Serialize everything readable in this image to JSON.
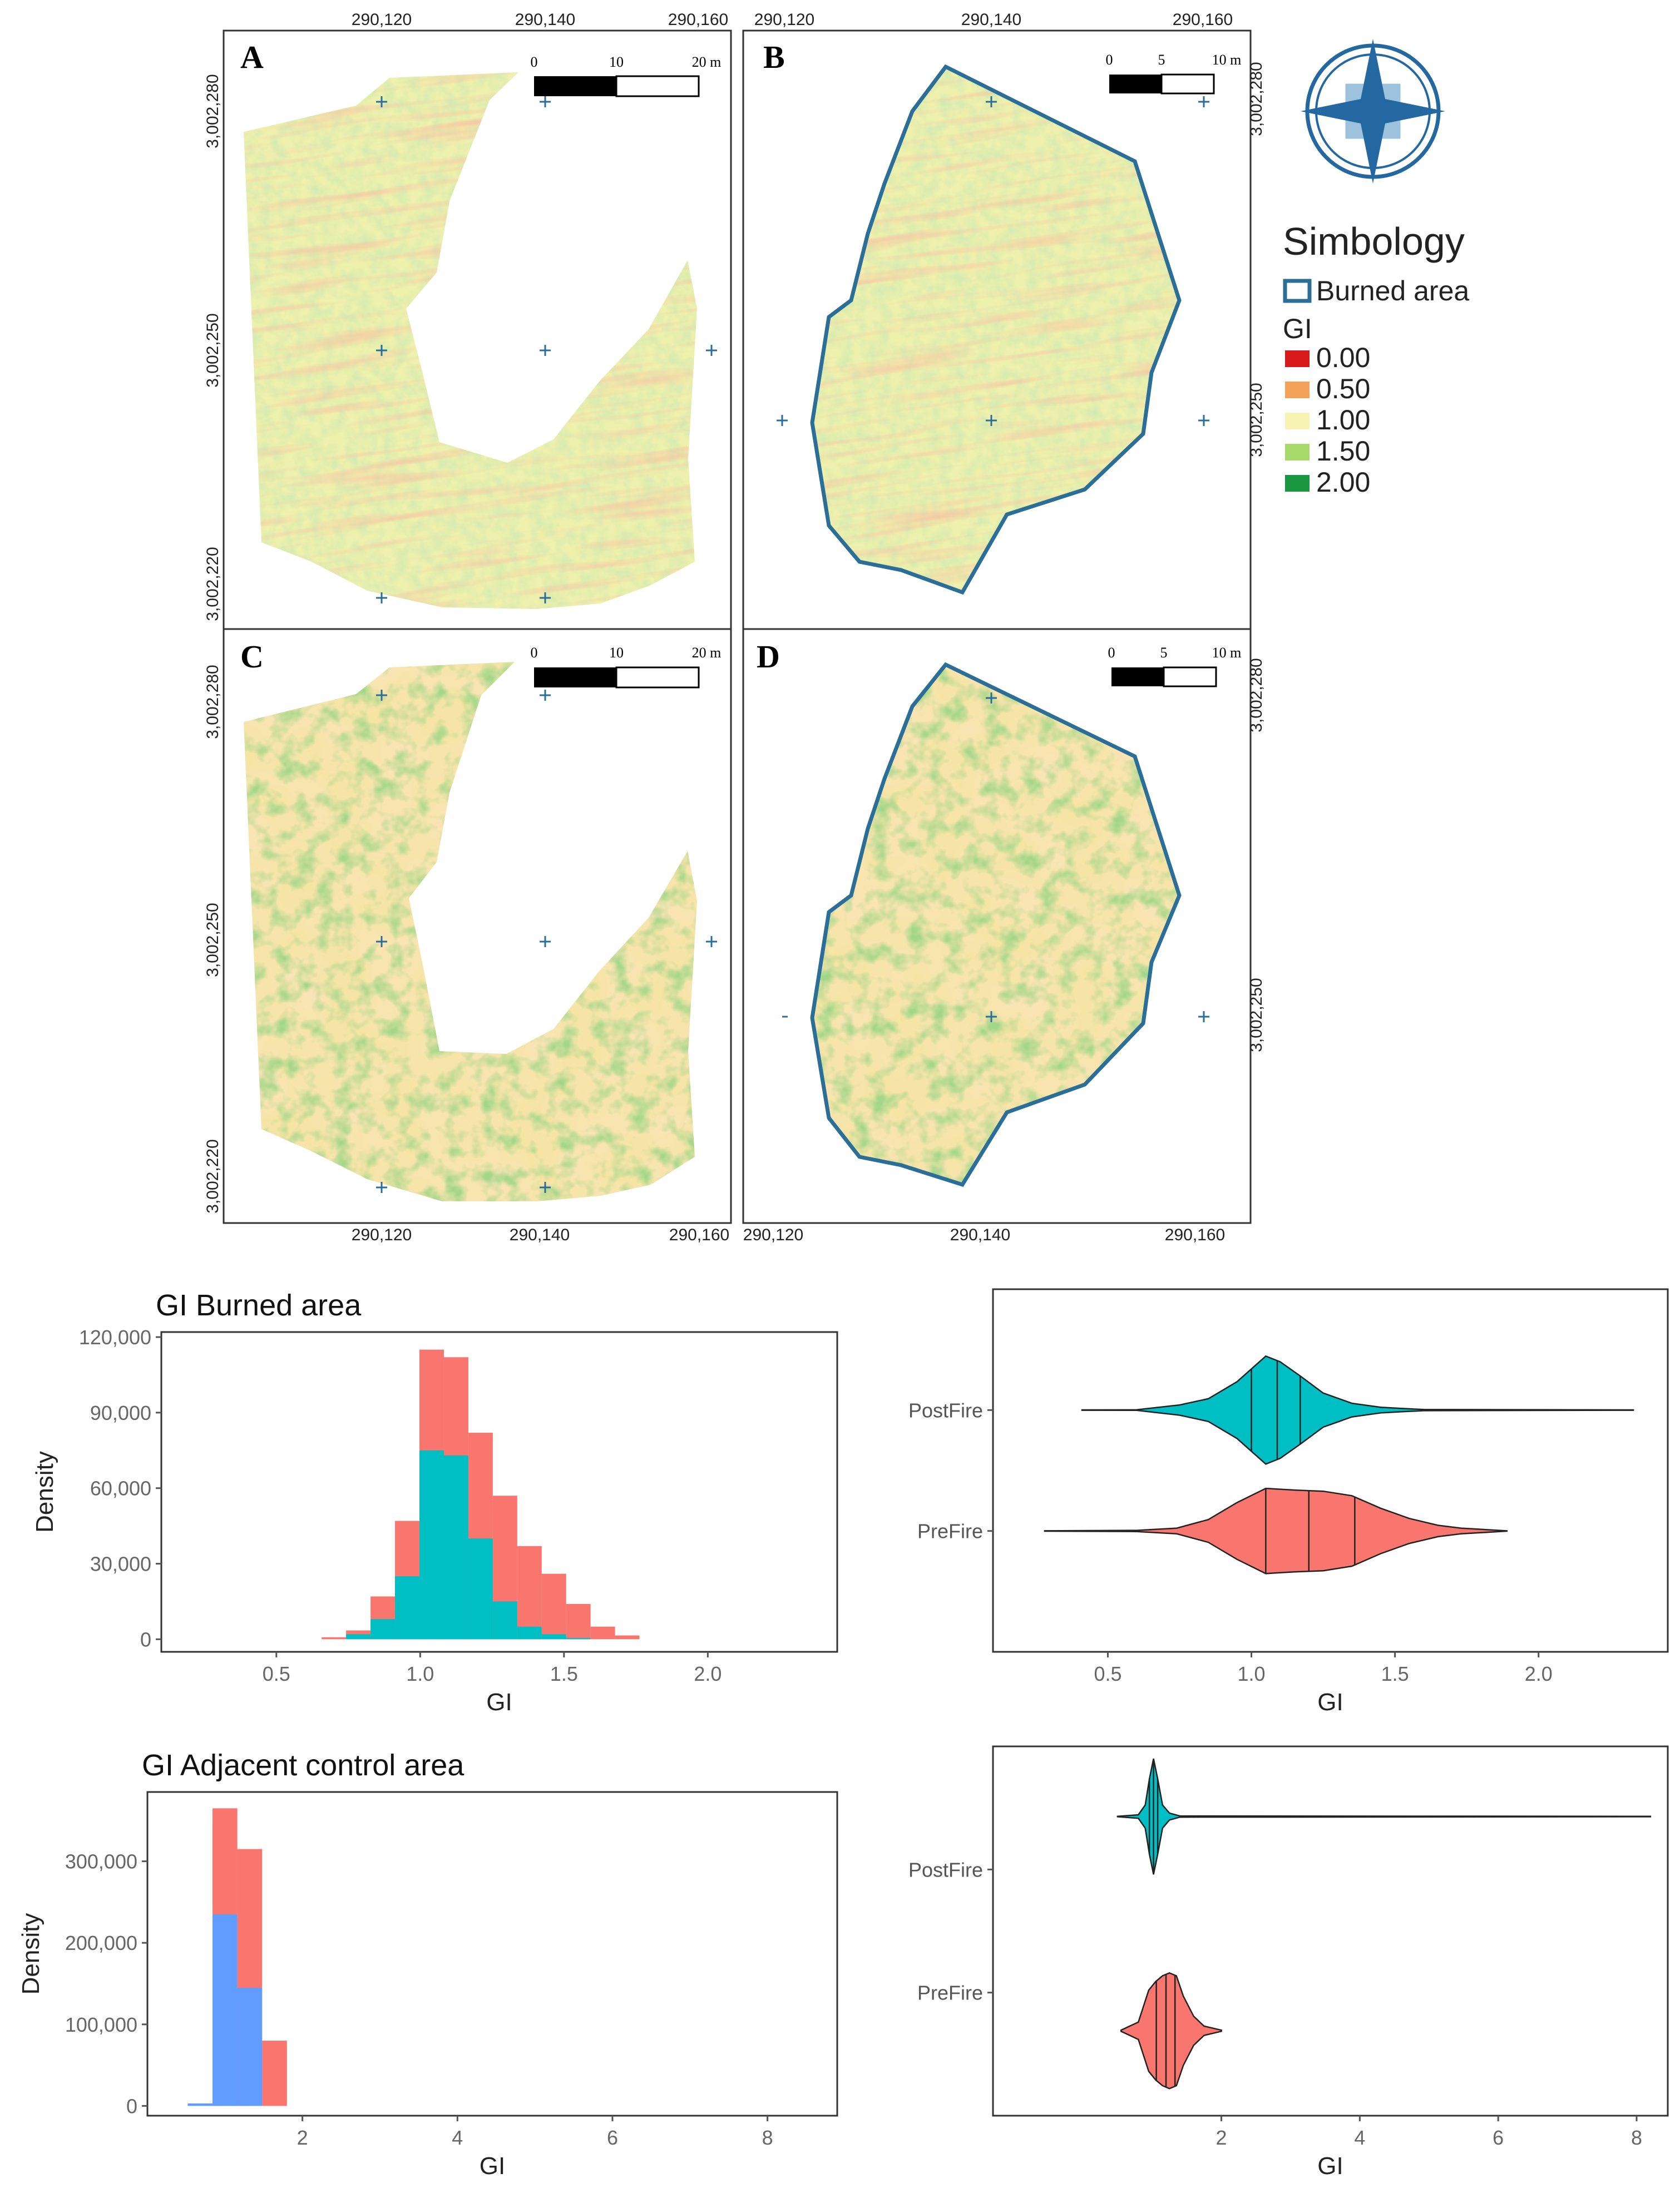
{
  "panels": [
    {
      "letter": "A",
      "x_ticks": [
        "290,120",
        "290,140",
        "290,160"
      ],
      "y_ticks": [
        "3,002,280",
        "3,002,250",
        "3,002,220"
      ],
      "scale": [
        "0",
        "10",
        "20 m"
      ]
    },
    {
      "letter": "B",
      "x_ticks": [
        "290,120",
        "290,140",
        "290,160"
      ],
      "y_ticks": [
        "3,002,280",
        "3,002,250"
      ],
      "scale": [
        "0",
        "5",
        "10 m"
      ]
    },
    {
      "letter": "C",
      "x_ticks": [
        "290,120",
        "290,140",
        "290,160"
      ],
      "y_ticks": [
        "3,002,280",
        "3,002,250",
        "3,002,220"
      ],
      "scale": [
        "0",
        "10",
        "20 m"
      ]
    },
    {
      "letter": "D",
      "x_ticks": [
        "290,120",
        "290,140",
        "290,160"
      ],
      "y_ticks": [
        "3,002,280",
        "3,002,250"
      ],
      "scale": [
        "0",
        "5",
        "10 m"
      ]
    }
  ],
  "legend": {
    "title": "Simbology",
    "burned_label": "Burned area",
    "gi_title": "GI",
    "burned_color": "#2b6f98",
    "classes": [
      {
        "label": "0.00",
        "color": "#d7191c"
      },
      {
        "label": "0.50",
        "color": "#f4a259"
      },
      {
        "label": "1.00",
        "color": "#f7f4b3"
      },
      {
        "label": "1.50",
        "color": "#a6d96a"
      },
      {
        "label": "2.00",
        "color": "#1a9641"
      }
    ]
  },
  "north_arrow": {
    "icon": "compass-rose-icon",
    "color": "#2468a2"
  },
  "chart_data": [
    {
      "type": "bar",
      "title": "GI Burned area",
      "xlabel": "GI",
      "ylabel": "Density",
      "xlim": [
        0.1,
        2.45
      ],
      "ylim": [
        -5000,
        122000
      ],
      "x_ticks": [
        "0.5",
        "1.0",
        "1.5",
        "2.0"
      ],
      "y_ticks": [
        "0",
        "30,000",
        "60,000",
        "90,000",
        "120,000"
      ],
      "bin_width": 0.085,
      "stacked": true,
      "series": [
        {
          "color": "#f8766d",
          "bins": [
            {
              "x": 0.7,
              "v": 800
            },
            {
              "x": 0.785,
              "v": 3500
            },
            {
              "x": 0.87,
              "v": 17000
            },
            {
              "x": 0.955,
              "v": 47000
            },
            {
              "x": 1.04,
              "v": 115000
            },
            {
              "x": 1.125,
              "v": 112000
            },
            {
              "x": 1.21,
              "v": 82000
            },
            {
              "x": 1.295,
              "v": 57000
            },
            {
              "x": 1.38,
              "v": 37000
            },
            {
              "x": 1.465,
              "v": 26000
            },
            {
              "x": 1.55,
              "v": 14000
            },
            {
              "x": 1.635,
              "v": 5000
            },
            {
              "x": 1.72,
              "v": 1500
            }
          ]
        },
        {
          "color": "#00bfc4",
          "bins": [
            {
              "x": 0.785,
              "v": 2000
            },
            {
              "x": 0.87,
              "v": 8000
            },
            {
              "x": 0.955,
              "v": 25000
            },
            {
              "x": 1.04,
              "v": 75000
            },
            {
              "x": 1.125,
              "v": 73000
            },
            {
              "x": 1.21,
              "v": 40000
            },
            {
              "x": 1.295,
              "v": 15000
            },
            {
              "x": 1.38,
              "v": 5000
            },
            {
              "x": 1.465,
              "v": 2000
            },
            {
              "x": 1.55,
              "v": 500
            }
          ]
        }
      ]
    },
    {
      "type": "violin",
      "xlabel": "GI",
      "xlim": [
        0.1,
        2.45
      ],
      "x_ticks": [
        "0.5",
        "1.0",
        "1.5",
        "2.0"
      ],
      "categories": [
        "PreFire",
        "PostFire"
      ],
      "series": [
        {
          "name": "PreFire",
          "color": "#00bfc4",
          "min": 0.41,
          "max": 2.33,
          "quantiles": [
            1.0,
            1.09,
            1.17
          ],
          "profile": [
            [
              0.41,
              0.003
            ],
            [
              0.6,
              0.005
            ],
            [
              0.75,
              0.09
            ],
            [
              0.85,
              0.2
            ],
            [
              0.95,
              0.5
            ],
            [
              1.05,
              0.95
            ],
            [
              1.1,
              0.85
            ],
            [
              1.17,
              0.6
            ],
            [
              1.25,
              0.3
            ],
            [
              1.35,
              0.12
            ],
            [
              1.45,
              0.05
            ],
            [
              1.52,
              0.03
            ],
            [
              1.6,
              0.01
            ],
            [
              2.33,
              0.003
            ]
          ]
        },
        {
          "name": "PostFire",
          "color": "#f8766d",
          "min": 0.28,
          "max": 1.89,
          "quantiles": [
            1.05,
            1.2,
            1.36
          ],
          "profile": [
            [
              0.28,
              0.003
            ],
            [
              0.6,
              0.01
            ],
            [
              0.74,
              0.05
            ],
            [
              0.85,
              0.2
            ],
            [
              0.95,
              0.5
            ],
            [
              1.05,
              0.75
            ],
            [
              1.15,
              0.72
            ],
            [
              1.25,
              0.7
            ],
            [
              1.35,
              0.62
            ],
            [
              1.45,
              0.4
            ],
            [
              1.55,
              0.22
            ],
            [
              1.65,
              0.1
            ],
            [
              1.73,
              0.05
            ],
            [
              1.89,
              0.003
            ]
          ]
        }
      ]
    },
    {
      "type": "bar",
      "title": "GI Adjacent control area",
      "xlabel": "GI",
      "ylabel": "Density",
      "xlim": [
        0,
        8.9
      ],
      "ylim": [
        -12000,
        385000
      ],
      "x_ticks": [
        "2",
        "4",
        "6",
        "8"
      ],
      "y_ticks": [
        "0",
        "100,000",
        "200,000",
        "300,000"
      ],
      "bin_width": 0.32,
      "stacked": true,
      "series": [
        {
          "color": "#f8766d",
          "bins": [
            {
              "x": 1.0,
              "v": 365000
            },
            {
              "x": 1.32,
              "v": 315000
            },
            {
              "x": 1.64,
              "v": 80000
            }
          ]
        },
        {
          "color": "#619cff",
          "bins": [
            {
              "x": 0.68,
              "v": 3000
            },
            {
              "x": 1.0,
              "v": 235000
            },
            {
              "x": 1.32,
              "v": 145000
            }
          ]
        }
      ]
    },
    {
      "type": "violin",
      "xlabel": "GI",
      "xlim": [
        -1.3,
        8.45
      ],
      "x_ticks": [
        "2",
        "4",
        "6",
        "8"
      ],
      "categories": [
        "PreFire",
        "PostFire"
      ],
      "series": [
        {
          "name": "PreFire",
          "color": "#00bfc4",
          "min": 0.5,
          "max": 8.2,
          "quantiles": [
            0.96,
            1.02,
            1.08
          ],
          "profile": [
            [
              0.5,
              0.003
            ],
            [
              0.8,
              0.03
            ],
            [
              0.9,
              0.2
            ],
            [
              0.96,
              0.65
            ],
            [
              1.02,
              1.0
            ],
            [
              1.08,
              0.65
            ],
            [
              1.15,
              0.2
            ],
            [
              1.25,
              0.06
            ],
            [
              1.4,
              0.01
            ],
            [
              8.2,
              0.003
            ]
          ]
        },
        {
          "name": "PostFire",
          "color": "#f8766d",
          "min": 0.55,
          "max": 2.0,
          "quantiles": [
            1.06,
            1.2,
            1.33
          ],
          "profile": [
            [
              0.55,
              0.01
            ],
            [
              0.8,
              0.15
            ],
            [
              0.95,
              0.7
            ],
            [
              1.05,
              0.85
            ],
            [
              1.15,
              0.95
            ],
            [
              1.25,
              1.0
            ],
            [
              1.35,
              0.95
            ],
            [
              1.45,
              0.6
            ],
            [
              1.6,
              0.25
            ],
            [
              1.75,
              0.08
            ],
            [
              2.0,
              0.01
            ]
          ]
        }
      ]
    }
  ]
}
